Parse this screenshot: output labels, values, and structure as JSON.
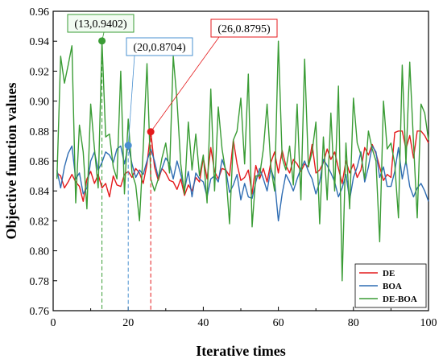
{
  "chart_data": {
    "type": "line",
    "xlabel": "Iterative times",
    "ylabel": "Objective function values",
    "xlim": [
      0,
      100
    ],
    "ylim": [
      0.76,
      0.96
    ],
    "x_ticks": [
      0,
      20,
      40,
      60,
      80,
      100
    ],
    "y_ticks": [
      0.76,
      0.78,
      0.8,
      0.82,
      0.84,
      0.86,
      0.88,
      0.9,
      0.92,
      0.94,
      0.96
    ],
    "grid": false,
    "legend_position": "bottom-right",
    "x": [
      1,
      2,
      3,
      4,
      5,
      6,
      7,
      8,
      9,
      10,
      11,
      12,
      13,
      14,
      15,
      16,
      17,
      18,
      19,
      20,
      21,
      22,
      23,
      24,
      25,
      26,
      27,
      28,
      29,
      30,
      31,
      32,
      33,
      34,
      35,
      36,
      37,
      38,
      39,
      40,
      41,
      42,
      43,
      44,
      45,
      46,
      47,
      48,
      49,
      50,
      51,
      52,
      53,
      54,
      55,
      56,
      57,
      58,
      59,
      60,
      61,
      62,
      63,
      64,
      65,
      66,
      67,
      68,
      69,
      70,
      71,
      72,
      73,
      74,
      75,
      76,
      77,
      78,
      79,
      80,
      81,
      82,
      83,
      84,
      85,
      86,
      87,
      88,
      89,
      90,
      91,
      92,
      93,
      94,
      95,
      96,
      97,
      98,
      99,
      100
    ],
    "series": [
      {
        "name": "DE",
        "color": "#e41a1c",
        "values": [
          0.852,
          0.85,
          0.842,
          0.846,
          0.851,
          0.846,
          0.843,
          0.833,
          0.848,
          0.853,
          0.845,
          0.851,
          0.842,
          0.845,
          0.836,
          0.85,
          0.844,
          0.843,
          0.851,
          0.853,
          0.849,
          0.855,
          0.852,
          0.845,
          0.858,
          0.88,
          0.856,
          0.847,
          0.855,
          0.852,
          0.847,
          0.846,
          0.841,
          0.848,
          0.837,
          0.844,
          0.84,
          0.849,
          0.846,
          0.862,
          0.848,
          0.869,
          0.853,
          0.848,
          0.855,
          0.854,
          0.85,
          0.874,
          0.858,
          0.847,
          0.849,
          0.854,
          0.838,
          0.857,
          0.848,
          0.855,
          0.846,
          0.859,
          0.866,
          0.852,
          0.867,
          0.857,
          0.852,
          0.861,
          0.858,
          0.853,
          0.858,
          0.856,
          0.871,
          0.852,
          0.854,
          0.859,
          0.868,
          0.861,
          0.866,
          0.855,
          0.845,
          0.86,
          0.852,
          0.858,
          0.849,
          0.854,
          0.869,
          0.864,
          0.871,
          0.865,
          0.856,
          0.847,
          0.851,
          0.849,
          0.879,
          0.88,
          0.88,
          0.868,
          0.877,
          0.862,
          0.88,
          0.88,
          0.877,
          0.872
        ]
      },
      {
        "name": "BOA",
        "color": "#2f6db3",
        "values": [
          0.854,
          0.842,
          0.856,
          0.865,
          0.87,
          0.848,
          0.852,
          0.838,
          0.842,
          0.86,
          0.866,
          0.854,
          0.859,
          0.866,
          0.864,
          0.859,
          0.868,
          0.87,
          0.858,
          0.8704,
          0.858,
          0.849,
          0.854,
          0.851,
          0.86,
          0.868,
          0.86,
          0.849,
          0.855,
          0.862,
          0.858,
          0.848,
          0.86,
          0.851,
          0.841,
          0.853,
          0.836,
          0.852,
          0.848,
          0.846,
          0.836,
          0.848,
          0.85,
          0.846,
          0.861,
          0.854,
          0.839,
          0.844,
          0.851,
          0.834,
          0.845,
          0.836,
          0.835,
          0.846,
          0.855,
          0.848,
          0.84,
          0.855,
          0.847,
          0.82,
          0.838,
          0.851,
          0.846,
          0.84,
          0.848,
          0.855,
          0.86,
          0.853,
          0.848,
          0.838,
          0.846,
          0.861,
          0.857,
          0.852,
          0.846,
          0.836,
          0.842,
          0.851,
          0.834,
          0.849,
          0.856,
          0.866,
          0.846,
          0.856,
          0.87,
          0.866,
          0.849,
          0.856,
          0.843,
          0.843,
          0.853,
          0.869,
          0.848,
          0.86,
          0.843,
          0.836,
          0.842,
          0.845,
          0.84,
          0.833
        ]
      },
      {
        "name": "DE-BOA",
        "color": "#3a9c35",
        "values": [
          0.848,
          0.93,
          0.912,
          0.924,
          0.937,
          0.832,
          0.884,
          0.866,
          0.828,
          0.898,
          0.868,
          0.842,
          0.9402,
          0.876,
          0.878,
          0.856,
          0.848,
          0.92,
          0.838,
          0.888,
          0.852,
          0.844,
          0.82,
          0.868,
          0.925,
          0.848,
          0.84,
          0.848,
          0.862,
          0.872,
          0.852,
          0.93,
          0.9,
          0.858,
          0.838,
          0.886,
          0.854,
          0.878,
          0.85,
          0.864,
          0.832,
          0.908,
          0.84,
          0.896,
          0.868,
          0.852,
          0.818,
          0.874,
          0.88,
          0.902,
          0.858,
          0.918,
          0.816,
          0.85,
          0.85,
          0.868,
          0.898,
          0.856,
          0.84,
          0.94,
          0.862,
          0.854,
          0.87,
          0.844,
          0.898,
          0.834,
          0.928,
          0.856,
          0.866,
          0.886,
          0.818,
          0.876,
          0.834,
          0.892,
          0.84,
          0.91,
          0.78,
          0.872,
          0.828,
          0.902,
          0.872,
          0.864,
          0.848,
          0.88,
          0.868,
          0.86,
          0.806,
          0.9,
          0.868,
          0.872,
          0.858,
          0.822,
          0.924,
          0.858,
          0.926,
          0.872,
          0.822,
          0.898,
          0.892,
          0.874
        ]
      }
    ],
    "annotations": [
      {
        "series": "DE-BOA",
        "x": 13,
        "y": 0.9402,
        "label": "(13,0.9402)",
        "color": "#3a9c35",
        "fill": "#f2fbf2"
      },
      {
        "series": "BOA",
        "x": 20,
        "y": 0.8704,
        "label": "(20,0.8704)",
        "color": "#4a90d0",
        "fill": "#ffffff"
      },
      {
        "series": "DE",
        "x": 26,
        "y": 0.8795,
        "label": "(26,0.8795)",
        "color": "#e41a1c",
        "fill": "#ffffff"
      }
    ]
  }
}
